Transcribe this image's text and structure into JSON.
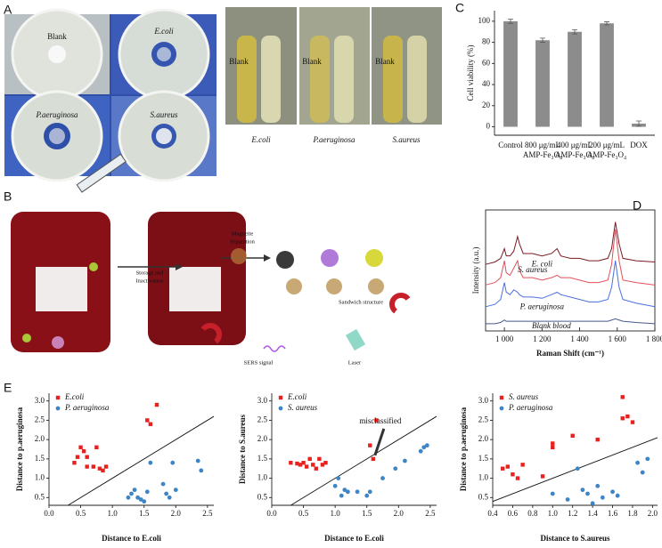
{
  "panel_labels": [
    "A",
    "B",
    "C",
    "D",
    "E"
  ],
  "photo_a": {
    "plates": [
      "Blank",
      "E.coli",
      "P.aeruginosa",
      "S.aureus"
    ],
    "tube_label": [
      "Blank",
      "Blank",
      "Blank"
    ],
    "tube_captions": [
      "E.coli",
      "P.aeruginosa",
      "S.aureus"
    ]
  },
  "diagram_b": {
    "step1": [
      "Storage and",
      "Inactivation"
    ],
    "step2": [
      "Magneite",
      "Separation"
    ],
    "labels": [
      "Sandwich structure",
      "SERS signal",
      "Laser"
    ]
  },
  "chart_data": [
    {
      "type": "bar",
      "ylabel": "Cell viability (%)",
      "categories": [
        "Control",
        "800 μg/mL AMP-Fe₃O₄",
        "400 μg/mL AMP-Fe₃O₄",
        "200 μg/mL AMP-Fe₃O₄",
        "DOX"
      ],
      "values": [
        100,
        82,
        90,
        98,
        3
      ],
      "errors": [
        2,
        2,
        2,
        1.5,
        2.5
      ],
      "color": "#8c8c8c",
      "ylim": [
        -8,
        110
      ],
      "yticks": [
        0,
        20,
        40,
        60,
        80,
        100
      ]
    },
    {
      "type": "line",
      "xlabel": "Raman Shift (cm⁻¹)",
      "ylabel": "Intensity (a.u.)",
      "x": [
        900,
        950,
        980,
        1000,
        1010,
        1030,
        1050,
        1070,
        1080,
        1100,
        1150,
        1200,
        1250,
        1280,
        1300,
        1350,
        1400,
        1450,
        1500,
        1550,
        1570,
        1590,
        1610,
        1630,
        1700,
        1800
      ],
      "xlim": [
        900,
        1800
      ],
      "xticks": [
        {
          "value": 1000,
          "label": "1 000"
        },
        {
          "value": 1200,
          "label": "1 200"
        },
        {
          "value": 1400,
          "label": "1 400"
        },
        {
          "value": 1600,
          "label": "1 600"
        },
        {
          "value": 1800,
          "label": "1 800"
        }
      ],
      "ylim": [
        0,
        100
      ],
      "series": [
        {
          "name": "E. coli",
          "color": "#7a1a22",
          "values": [
            55,
            57,
            60,
            68,
            62,
            62,
            66,
            78,
            72,
            64,
            64,
            62,
            64,
            68,
            62,
            60,
            60,
            58,
            58,
            60,
            68,
            90,
            72,
            60,
            58,
            57
          ]
        },
        {
          "name": "S. aureus",
          "color": "#e0505a",
          "values": [
            38,
            40,
            44,
            58,
            48,
            46,
            52,
            58,
            50,
            44,
            44,
            42,
            44,
            46,
            44,
            44,
            42,
            40,
            40,
            42,
            55,
            84,
            58,
            42,
            40,
            38
          ]
        },
        {
          "name": "P. aeruginosa",
          "color": "#4a6fe0",
          "values": [
            20,
            22,
            26,
            40,
            32,
            30,
            34,
            32,
            30,
            28,
            28,
            27,
            30,
            32,
            30,
            28,
            26,
            24,
            24,
            26,
            36,
            58,
            36,
            26,
            23,
            20
          ]
        },
        {
          "name": "Blank blood",
          "color": "#4a5a8c",
          "values": [
            6,
            6,
            7,
            9,
            8,
            8,
            8,
            8,
            8,
            8,
            8,
            8,
            8,
            8,
            8,
            8,
            8,
            8,
            8,
            8,
            9,
            10,
            9,
            8,
            7,
            6
          ]
        }
      ]
    },
    {
      "type": "scatter",
      "xlabel": "Distance to E.coli",
      "ylabel": "Distance to p.aeruginosa",
      "xlim": [
        0,
        2.6
      ],
      "xticks": [
        {
          "value": 0,
          "label": "0.0"
        },
        0.5,
        {
          "value": 1,
          "label": "1.0"
        },
        1.5,
        {
          "value": 2,
          "label": "2.0"
        },
        2.5
      ],
      "ylim": [
        0.3,
        3.2
      ],
      "yticks": [
        0.5,
        {
          "value": 1,
          "label": "1.0"
        },
        1.5,
        {
          "value": 2,
          "label": "2.0"
        },
        2.5,
        {
          "value": 3,
          "label": "3.0"
        }
      ],
      "series": [
        {
          "name": "E.coli",
          "color": "#e8211f",
          "marker": "square",
          "x": [
            0.4,
            0.45,
            0.5,
            0.55,
            0.6,
            0.7,
            0.75,
            0.8,
            0.85,
            0.9,
            0.6,
            1.55,
            1.6,
            1.7
          ],
          "values": [
            1.4,
            1.55,
            1.8,
            1.7,
            1.3,
            1.3,
            1.8,
            1.25,
            1.2,
            1.3,
            1.55,
            2.5,
            2.4,
            2.9
          ]
        },
        {
          "name": "P. aeruginosa",
          "color": "#3d85c6",
          "marker": "circle",
          "x": [
            1.25,
            1.3,
            1.35,
            1.4,
            1.45,
            1.5,
            1.55,
            1.6,
            1.8,
            1.85,
            1.9,
            1.95,
            2.0,
            2.35,
            2.4
          ],
          "values": [
            0.5,
            0.6,
            0.7,
            0.5,
            0.45,
            0.4,
            0.65,
            1.4,
            0.85,
            0.6,
            0.5,
            1.4,
            0.7,
            1.45,
            1.2
          ]
        }
      ]
    },
    {
      "type": "scatter",
      "xlabel": "Distance to E.coli",
      "ylabel": "Distance to S.aureus",
      "annotation": "misclassified",
      "xlim": [
        0,
        2.6
      ],
      "xticks": [
        {
          "value": 0,
          "label": "0.0"
        },
        0.5,
        {
          "value": 1,
          "label": "1.0"
        },
        1.5,
        {
          "value": 2,
          "label": "2.0"
        },
        2.5
      ],
      "ylim": [
        0.3,
        3.2
      ],
      "yticks": [
        0.5,
        {
          "value": 1,
          "label": "1.0"
        },
        1.5,
        {
          "value": 2,
          "label": "2.0"
        },
        2.5,
        {
          "value": 3,
          "label": "3.0"
        }
      ],
      "series": [
        {
          "name": "E.coli",
          "color": "#e8211f",
          "marker": "square",
          "x": [
            0.3,
            0.4,
            0.45,
            0.5,
            0.55,
            0.6,
            0.65,
            0.7,
            0.75,
            0.8,
            0.85,
            1.6,
            1.55,
            1.65
          ],
          "values": [
            1.4,
            1.38,
            1.35,
            1.4,
            1.3,
            1.5,
            1.35,
            1.25,
            1.5,
            1.35,
            1.4,
            1.5,
            1.85,
            2.5
          ]
        },
        {
          "name": "S. aureus",
          "color": "#3d85c6",
          "marker": "circle",
          "x": [
            1.0,
            1.05,
            1.1,
            1.15,
            1.2,
            1.35,
            1.5,
            1.55,
            1.75,
            1.95,
            2.1,
            2.35,
            2.4,
            2.45
          ],
          "values": [
            0.8,
            1.0,
            0.55,
            0.7,
            0.65,
            0.65,
            0.55,
            0.65,
            1.0,
            1.25,
            1.45,
            1.7,
            1.8,
            1.85
          ]
        }
      ]
    },
    {
      "type": "scatter",
      "xlabel": "Distance to S.aureus",
      "ylabel": "Distance to p.aeruginosa",
      "xlim": [
        0.4,
        2.05
      ],
      "xticks": [
        0.4,
        0.6,
        0.8,
        {
          "value": 1,
          "label": "1.0"
        },
        1.2,
        1.4,
        1.6,
        1.8,
        {
          "value": 2,
          "label": "2.0"
        }
      ],
      "ylim": [
        0.3,
        3.2
      ],
      "yticks": [
        0.5,
        {
          "value": 1,
          "label": "1.0"
        },
        1.5,
        {
          "value": 2,
          "label": "2.0"
        },
        2.5,
        {
          "value": 3,
          "label": "3.0"
        }
      ],
      "series": [
        {
          "name": "S. aureus",
          "color": "#e8211f",
          "marker": "square",
          "x": [
            0.5,
            0.55,
            0.6,
            0.65,
            0.7,
            0.9,
            1.0,
            1.0,
            1.2,
            1.45,
            1.7,
            1.75,
            1.8,
            1.7
          ],
          "values": [
            1.25,
            1.3,
            1.1,
            1.0,
            1.35,
            1.05,
            1.8,
            1.9,
            2.1,
            2.0,
            2.55,
            2.6,
            2.45,
            3.1
          ]
        },
        {
          "name": "P. aeruginosa",
          "color": "#3d85c6",
          "marker": "circle",
          "x": [
            1.0,
            1.15,
            1.25,
            1.3,
            1.35,
            1.4,
            1.45,
            1.5,
            1.6,
            1.65,
            1.85,
            1.9,
            1.95
          ],
          "values": [
            0.6,
            0.45,
            1.25,
            0.7,
            0.6,
            0.35,
            0.8,
            0.5,
            0.65,
            0.55,
            1.4,
            1.15,
            1.5
          ]
        }
      ]
    }
  ]
}
